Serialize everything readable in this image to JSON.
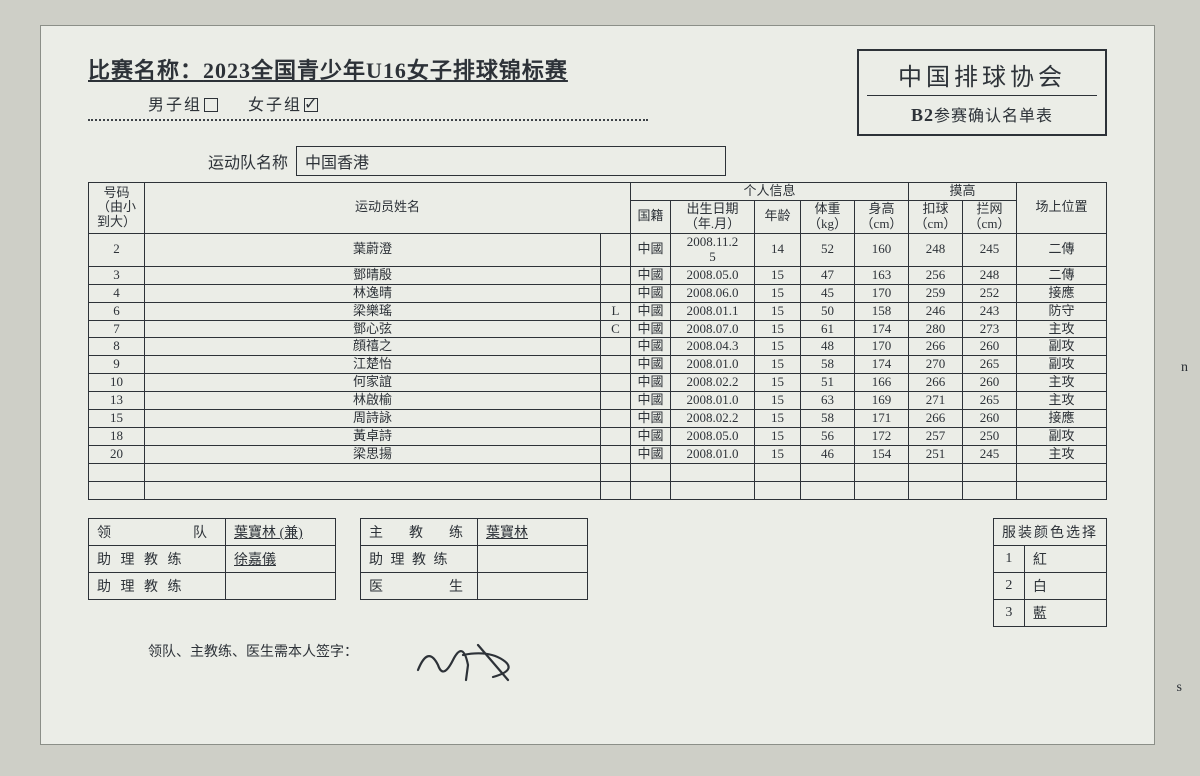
{
  "background_color": "#cecfc7",
  "paper_color": "#eceee8",
  "border_color": "#2a2f35",
  "text_color": "#2a2f35",
  "font_family": "SimSun",
  "table_fontsize_pt": 10,
  "title": {
    "label": "比赛名称：",
    "value": "2023全国青少年U16女子排球锦标赛"
  },
  "gender": {
    "male_label": "男子组",
    "female_label": "女子组",
    "male_checked": false,
    "female_checked": true
  },
  "org": {
    "name": "中国排球协会",
    "sub_prefix": "B2",
    "sub_text": "参赛确认名单表"
  },
  "team": {
    "label": "运动队名称",
    "name": "中国香港"
  },
  "headers": {
    "number": "号码\n（由小\n到大）",
    "name": "运动员姓名",
    "personal": "个人信息",
    "reach": "摸高",
    "position": "场上位置",
    "nationality": "国籍",
    "dob": "出生日期\n（年.月）",
    "age": "年龄",
    "weight": "体重\n（kg）",
    "height": "身高\n（cm）",
    "spike": "扣球\n（cm）",
    "block": "拦网\n（cm）"
  },
  "players": [
    {
      "num": "2",
      "name": "葉蔚澄",
      "role": "",
      "nat": "中國",
      "dob": "2008.11.2\n5",
      "age": "14",
      "wt": "52",
      "ht": "160",
      "spk": "248",
      "blk": "245",
      "pos": "二傳"
    },
    {
      "num": "3",
      "name": "鄧晴殷",
      "role": "",
      "nat": "中國",
      "dob": "2008.05.0",
      "age": "15",
      "wt": "47",
      "ht": "163",
      "spk": "256",
      "blk": "248",
      "pos": "二傳"
    },
    {
      "num": "4",
      "name": "林逸晴",
      "role": "",
      "nat": "中國",
      "dob": "2008.06.0",
      "age": "15",
      "wt": "45",
      "ht": "170",
      "spk": "259",
      "blk": "252",
      "pos": "接應"
    },
    {
      "num": "6",
      "name": "梁樂瑤",
      "role": "L",
      "nat": "中國",
      "dob": "2008.01.1",
      "age": "15",
      "wt": "50",
      "ht": "158",
      "spk": "246",
      "blk": "243",
      "pos": "防守"
    },
    {
      "num": "7",
      "name": "鄧心弦",
      "role": "C",
      "nat": "中國",
      "dob": "2008.07.0",
      "age": "15",
      "wt": "61",
      "ht": "174",
      "spk": "280",
      "blk": "273",
      "pos": "主攻"
    },
    {
      "num": "8",
      "name": "顔禧之",
      "role": "",
      "nat": "中國",
      "dob": "2008.04.3",
      "age": "15",
      "wt": "48",
      "ht": "170",
      "spk": "266",
      "blk": "260",
      "pos": "副攻"
    },
    {
      "num": "9",
      "name": "江楚怡",
      "role": "",
      "nat": "中國",
      "dob": "2008.01.0",
      "age": "15",
      "wt": "58",
      "ht": "174",
      "spk": "270",
      "blk": "265",
      "pos": "副攻"
    },
    {
      "num": "10",
      "name": "何家誼",
      "role": "",
      "nat": "中國",
      "dob": "2008.02.2",
      "age": "15",
      "wt": "51",
      "ht": "166",
      "spk": "266",
      "blk": "260",
      "pos": "主攻"
    },
    {
      "num": "13",
      "name": "林啟榆",
      "role": "",
      "nat": "中國",
      "dob": "2008.01.0",
      "age": "15",
      "wt": "63",
      "ht": "169",
      "spk": "271",
      "blk": "265",
      "pos": "主攻"
    },
    {
      "num": "15",
      "name": "周詩詠",
      "role": "",
      "nat": "中國",
      "dob": "2008.02.2",
      "age": "15",
      "wt": "58",
      "ht": "171",
      "spk": "266",
      "blk": "260",
      "pos": "接應"
    },
    {
      "num": "18",
      "name": "黃卓詩",
      "role": "",
      "nat": "中國",
      "dob": "2008.05.0",
      "age": "15",
      "wt": "56",
      "ht": "172",
      "spk": "257",
      "blk": "250",
      "pos": "副攻"
    },
    {
      "num": "20",
      "name": "梁思揚",
      "role": "",
      "nat": "中國",
      "dob": "2008.01.0",
      "age": "15",
      "wt": "46",
      "ht": "154",
      "spk": "251",
      "blk": "245",
      "pos": "主攻"
    }
  ],
  "blank_rows": 2,
  "staff": {
    "leader_label": "领　　　队",
    "asst1_label": "助 理 教 练",
    "asst2_label": "助 理 教 练",
    "leader_name": "葉寶林 (兼)",
    "asst1_name": "徐嘉儀",
    "asst2_name": ""
  },
  "coach": {
    "head_label": "主　教　练",
    "asst_label": "助 理 教 练",
    "doctor_label": "医　　　生",
    "head_name": "葉寶林",
    "asst_name": "",
    "doctor_name": ""
  },
  "uniform": {
    "header": "服装颜色选择",
    "rows": [
      {
        "n": "1",
        "c": "紅"
      },
      {
        "n": "2",
        "c": "白"
      },
      {
        "n": "3",
        "c": "藍"
      }
    ]
  },
  "signature_label": "领队、主教练、医生需本人签字：",
  "stray_marks": {
    "right1": "n",
    "right2": "s"
  }
}
